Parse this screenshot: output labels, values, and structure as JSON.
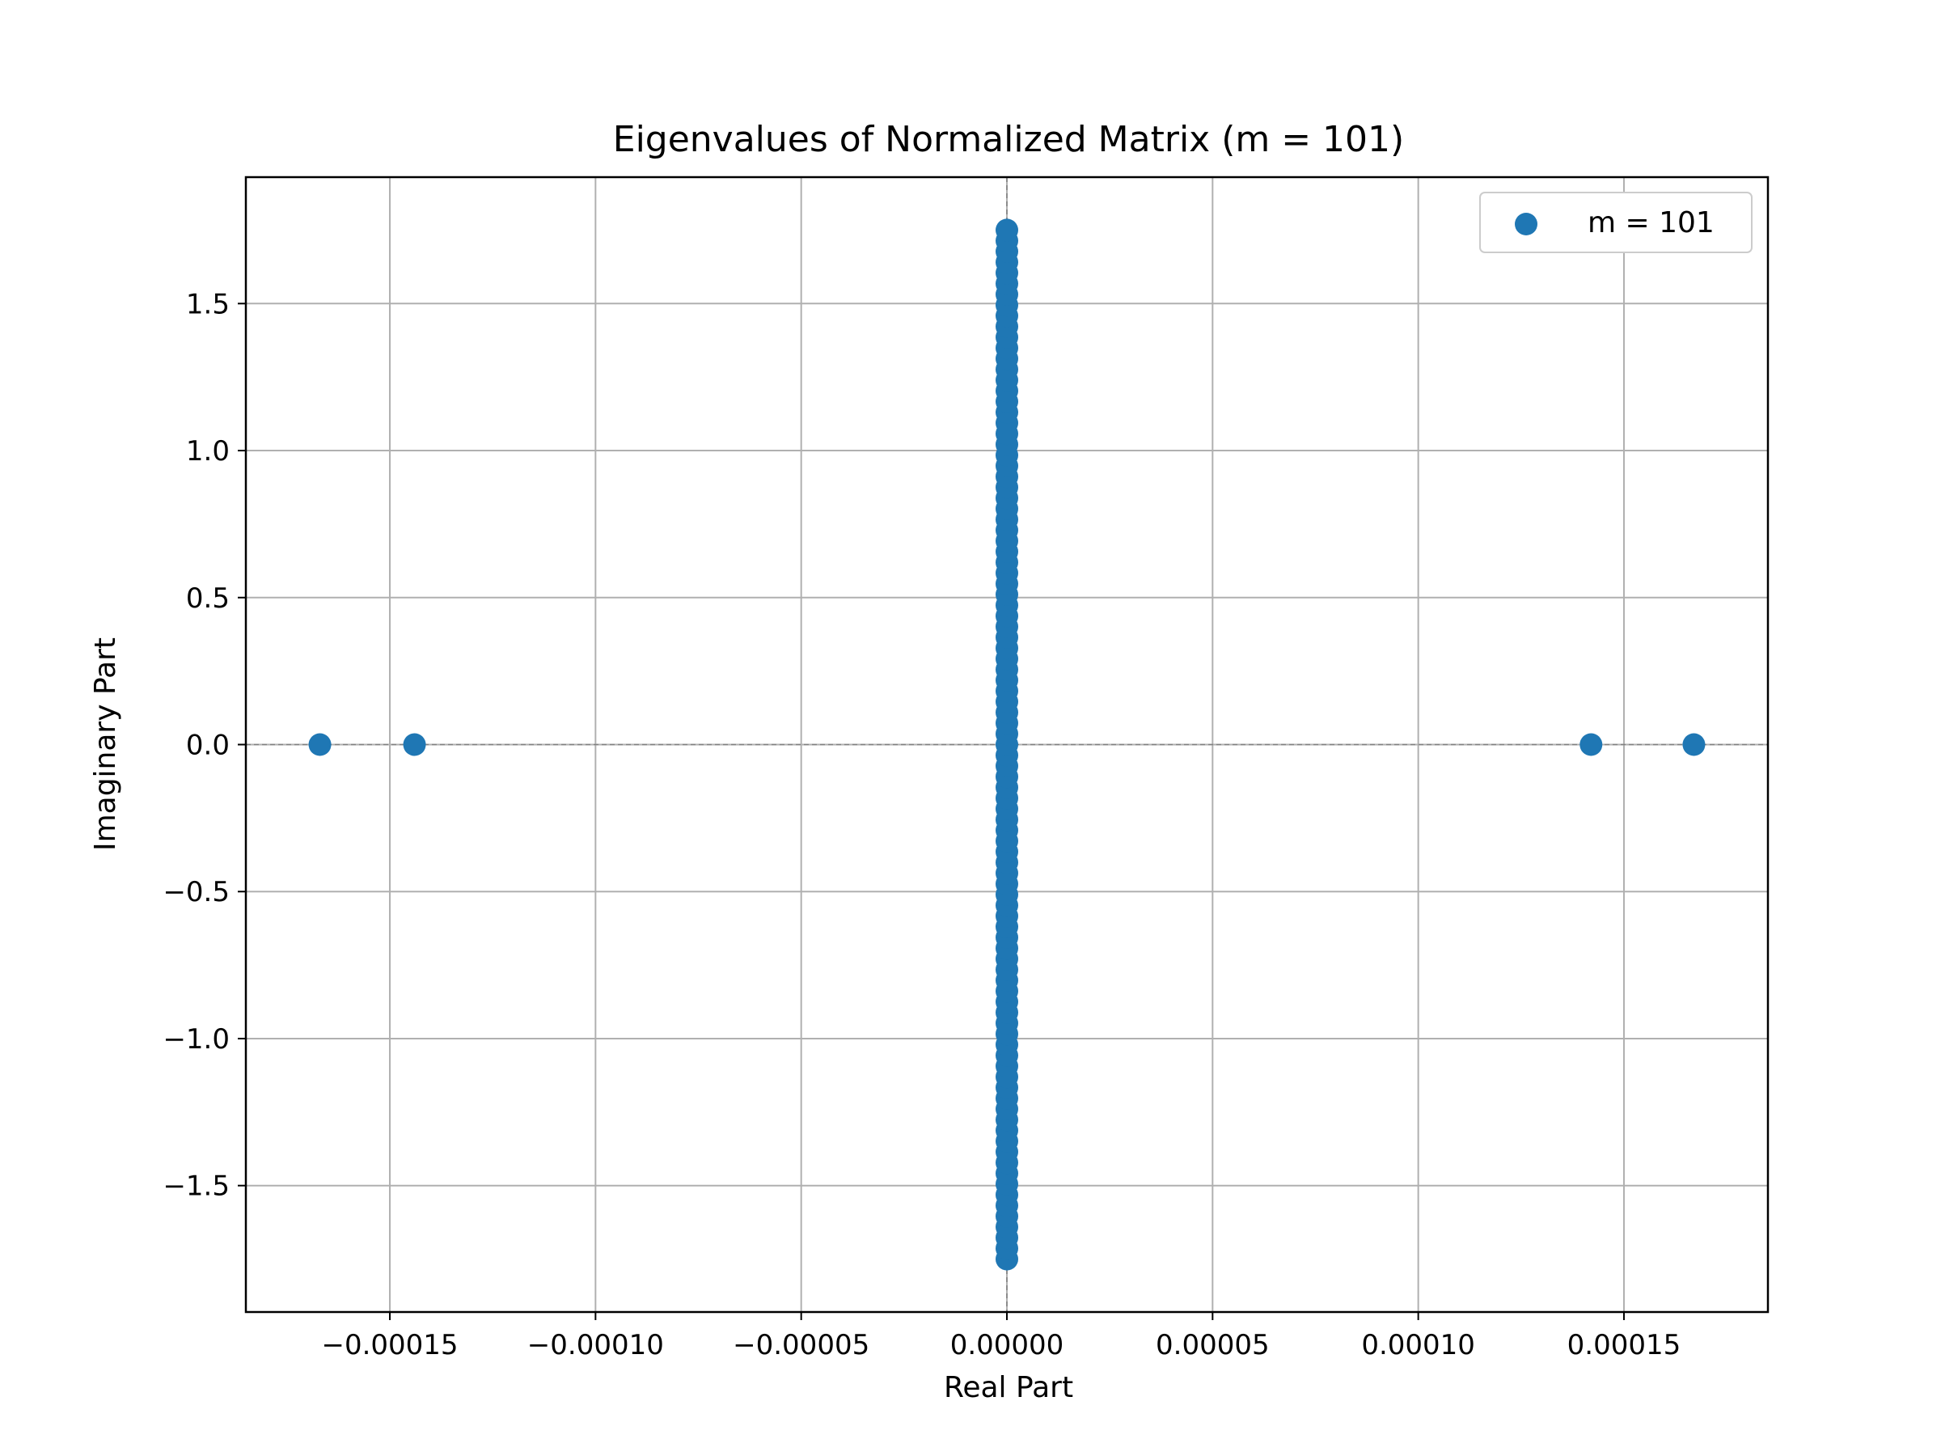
{
  "chart_data": {
    "type": "scatter",
    "title": "Eigenvalues of Normalized Matrix (m = 101)",
    "xlabel": "Real Part",
    "ylabel": "Imaginary Part",
    "xlim": [
      -0.000185,
      0.000185
    ],
    "ylim": [
      -1.93,
      1.93
    ],
    "x_ticks": [
      -0.00015,
      -0.0001,
      -5e-05,
      0,
      5e-05,
      0.0001,
      0.00015
    ],
    "x_tick_labels": [
      "−0.00015",
      "−0.00010",
      "−0.00005",
      "0.00000",
      "0.00005",
      "0.00010",
      "0.00015"
    ],
    "y_ticks": [
      -1.5,
      -1.0,
      -0.5,
      0,
      0.5,
      1.0,
      1.5
    ],
    "y_tick_labels": [
      "−1.5",
      "−1.0",
      "−0.5",
      "0.0",
      "0.5",
      "1.0",
      "1.5"
    ],
    "grid": true,
    "legend_position": "top-right",
    "reference_lines": {
      "x": 0,
      "y": 0,
      "style": "dashed",
      "color": "#808080"
    },
    "series": [
      {
        "name": "m = 101",
        "color": "#1f77b4",
        "points": [
          {
            "x": -0.000167,
            "y": 0
          },
          {
            "x": -0.000144,
            "y": 0
          },
          {
            "x": 0.000142,
            "y": 0
          },
          {
            "x": 0.000167,
            "y": 0
          }
        ],
        "imaginary_axis_cluster": {
          "x": 0,
          "count": 97,
          "y_min": -1.75,
          "y_max": 1.75
        }
      }
    ]
  }
}
